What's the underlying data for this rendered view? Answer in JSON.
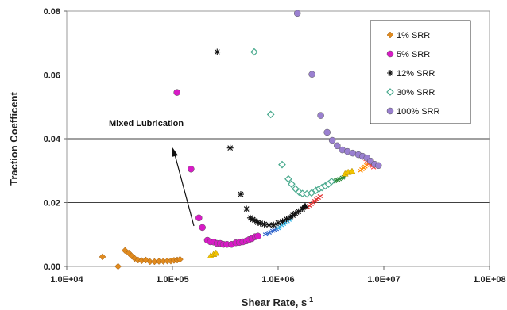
{
  "chart_data": {
    "type": "scatter",
    "title": "",
    "xlabel": "Shear Rate, s",
    "xlabel_sup": "-1",
    "ylabel": "Traction Coefficent",
    "xscale": "log",
    "xlim": [
      10000,
      100000000
    ],
    "ylim": [
      0,
      0.08
    ],
    "x_tick_labels": [
      "1.0E+04",
      "1.0E+05",
      "1.0E+06",
      "1.0E+07",
      "1.0E+08"
    ],
    "y_tick_labels": [
      "0.00",
      "0.02",
      "0.04",
      "0.06",
      "0.08"
    ],
    "grid": "horizontal",
    "legend_position": "top-right",
    "annotation": "Mixed Lubrication",
    "series": [
      {
        "name": "1% SRR",
        "marker": "diamond",
        "color": "#E08A1E",
        "points": [
          [
            21800,
            0.003
          ],
          [
            30600,
            0.0
          ],
          [
            35600,
            0.005
          ],
          [
            38700,
            0.0042
          ],
          [
            41100,
            0.0033
          ],
          [
            43900,
            0.0025
          ],
          [
            47300,
            0.002
          ],
          [
            51200,
            0.0018
          ],
          [
            56000,
            0.002
          ],
          [
            61300,
            0.0015
          ],
          [
            67600,
            0.0015
          ],
          [
            74600,
            0.0016
          ],
          [
            82100,
            0.0016
          ],
          [
            89500,
            0.0017
          ],
          [
            96600,
            0.0017
          ],
          [
            103400,
            0.0019
          ],
          [
            111000,
            0.002
          ],
          [
            117800,
            0.0022
          ]
        ]
      },
      {
        "name": "5% SRR",
        "marker": "circle",
        "color": "#D81BC6",
        "points": [
          [
            110300,
            0.0545
          ],
          [
            150000,
            0.0305
          ],
          [
            178000,
            0.0152
          ],
          [
            192000,
            0.0122
          ],
          [
            214000,
            0.0082
          ],
          [
            229000,
            0.0077
          ],
          [
            247000,
            0.0076
          ],
          [
            264000,
            0.0072
          ],
          [
            283000,
            0.0072
          ],
          [
            303000,
            0.0069
          ],
          [
            328000,
            0.0069
          ],
          [
            363000,
            0.0069
          ],
          [
            398000,
            0.0074
          ],
          [
            430000,
            0.0075
          ],
          [
            465000,
            0.0077
          ],
          [
            501000,
            0.008
          ],
          [
            532000,
            0.0084
          ],
          [
            564000,
            0.0087
          ],
          [
            607000,
            0.0093
          ],
          [
            643000,
            0.0095
          ]
        ]
      },
      {
        "name": "12% SRR",
        "marker": "star",
        "color": "#111111",
        "points": [
          [
            265000,
            0.0672
          ],
          [
            352000,
            0.0371
          ],
          [
            443000,
            0.0226
          ],
          [
            502000,
            0.018
          ],
          [
            545000,
            0.0152
          ],
          [
            574000,
            0.0147
          ],
          [
            604000,
            0.0144
          ],
          [
            640000,
            0.0138
          ],
          [
            680000,
            0.0135
          ],
          [
            740000,
            0.0132
          ],
          [
            820000,
            0.013
          ],
          [
            905000,
            0.013
          ],
          [
            1000000,
            0.0136
          ],
          [
            1100000,
            0.0141
          ],
          [
            1200000,
            0.0148
          ],
          [
            1300000,
            0.0154
          ],
          [
            1380000,
            0.016
          ],
          [
            1460000,
            0.0166
          ],
          [
            1560000,
            0.0172
          ],
          [
            1700000,
            0.018
          ]
        ]
      },
      {
        "name": "30% SRR",
        "marker": "open-diamond",
        "color": "#4AAA8E",
        "points": [
          [
            594000,
            0.0672
          ],
          [
            851000,
            0.0476
          ],
          [
            1090000,
            0.0319
          ],
          [
            1250000,
            0.0274
          ],
          [
            1340000,
            0.0258
          ],
          [
            1460000,
            0.0243
          ],
          [
            1580000,
            0.0233
          ],
          [
            1700000,
            0.0228
          ],
          [
            1870000,
            0.0227
          ],
          [
            2070000,
            0.023
          ],
          [
            2280000,
            0.0238
          ],
          [
            2440000,
            0.0243
          ],
          [
            2600000,
            0.0247
          ],
          [
            2790000,
            0.0252
          ],
          [
            3000000,
            0.0258
          ],
          [
            3200000,
            0.0266
          ]
        ]
      },
      {
        "name": "100% SRR",
        "marker": "circle",
        "color": "#9A80D0",
        "points": [
          [
            1520000,
            0.0793
          ],
          [
            2090000,
            0.0602
          ],
          [
            2530000,
            0.0473
          ],
          [
            2910000,
            0.042
          ],
          [
            3250000,
            0.0395
          ],
          [
            3620000,
            0.0378
          ],
          [
            4050000,
            0.0365
          ],
          [
            4530000,
            0.036
          ],
          [
            5080000,
            0.0355
          ],
          [
            5740000,
            0.035
          ],
          [
            6290000,
            0.0345
          ],
          [
            6920000,
            0.034
          ],
          [
            7500000,
            0.033
          ],
          [
            8200000,
            0.032
          ],
          [
            8900000,
            0.0316
          ]
        ]
      }
    ]
  }
}
